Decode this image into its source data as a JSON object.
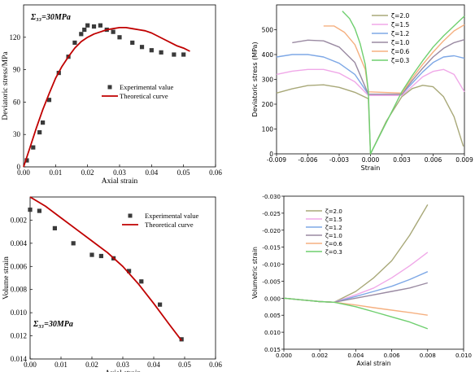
{
  "chart_data": [
    {
      "type": "scatter",
      "panel": "top-left",
      "xlabel": "Axial strain",
      "ylabel": "Deviatoric stress/MPa",
      "annotation": "Σ₃₃=30MPa",
      "xlim": [
        0,
        0.06
      ],
      "ylim": [
        0,
        150
      ],
      "xticks": [
        "0.00",
        "0.01",
        "0.02",
        "0.03",
        "0.04",
        "0.05",
        "0.06"
      ],
      "yticks": [
        "0",
        "30",
        "60",
        "90",
        "120"
      ],
      "ytick_values": [
        0,
        30,
        60,
        90,
        120
      ],
      "legend_position": "center-right",
      "series": [
        {
          "name": "Experimental value",
          "kind": "points",
          "color": "#3a3a3a",
          "x": [
            0.001,
            0.003,
            0.005,
            0.006,
            0.008,
            0.011,
            0.014,
            0.016,
            0.018,
            0.019,
            0.02,
            0.022,
            0.024,
            0.026,
            0.028,
            0.03,
            0.034,
            0.037,
            0.04,
            0.043,
            0.047,
            0.05
          ],
          "y": [
            6,
            18,
            32,
            41,
            62,
            87,
            102,
            115,
            123,
            127,
            131,
            130,
            131,
            127,
            125,
            120,
            115,
            111,
            108,
            106,
            104,
            104
          ]
        },
        {
          "name": "Theoretical curve",
          "kind": "line",
          "color": "#c00000",
          "x": [
            0.0,
            0.002,
            0.004,
            0.006,
            0.008,
            0.01,
            0.012,
            0.014,
            0.016,
            0.018,
            0.02,
            0.022,
            0.024,
            0.026,
            0.028,
            0.03,
            0.032,
            0.034,
            0.036,
            0.038,
            0.04,
            0.042,
            0.044,
            0.046,
            0.048,
            0.05,
            0.052
          ],
          "y": [
            0,
            18,
            36,
            53,
            68,
            82,
            93,
            102,
            110,
            116,
            120,
            123,
            125,
            127,
            128,
            129,
            129,
            128,
            127,
            126,
            124,
            121,
            118,
            115,
            112,
            110,
            107
          ]
        }
      ]
    },
    {
      "type": "line",
      "panel": "top-right",
      "xlabel": "Strain",
      "ylabel": "Deviatoric stress (MPa)",
      "xlim": [
        -0.009,
        0.009
      ],
      "ylim": [
        0,
        600
      ],
      "xticks": [
        "-0.009",
        "-0.006",
        "-0.003",
        "0.000",
        "0.003",
        "0.006",
        "0.009"
      ],
      "xtick_values": [
        -0.009,
        -0.006,
        -0.003,
        0,
        0.003,
        0.006,
        0.009
      ],
      "yticks": [
        "0",
        "100",
        "200",
        "300",
        "400",
        "500"
      ],
      "ytick_values": [
        0,
        100,
        200,
        300,
        400,
        500
      ],
      "legend_position": "top-right",
      "series": [
        {
          "name": "ζ=2.0",
          "color": "#a8a878",
          "x": [
            -0.009,
            -0.0075,
            -0.006,
            -0.0045,
            -0.003,
            -0.0015,
            -0.0002,
            0.0,
            0.0015,
            0.003,
            0.004,
            0.005,
            0.006,
            0.007,
            0.008,
            0.0089
          ],
          "y": [
            245,
            262,
            275,
            278,
            268,
            248,
            222,
            0,
            130,
            230,
            263,
            276,
            270,
            230,
            150,
            30
          ]
        },
        {
          "name": "ζ=1.5",
          "color": "#f0a8e8",
          "x": [
            -0.009,
            -0.0075,
            -0.006,
            -0.0045,
            -0.003,
            -0.0015,
            -0.0002,
            0.003,
            0.004,
            0.005,
            0.006,
            0.007,
            0.008,
            0.009
          ],
          "y": [
            320,
            333,
            340,
            340,
            325,
            290,
            235,
            235,
            272,
            310,
            332,
            340,
            320,
            250
          ]
        },
        {
          "name": "ζ=1.2",
          "color": "#7ea8e6",
          "x": [
            -0.009,
            -0.0075,
            -0.006,
            -0.0045,
            -0.003,
            -0.0015,
            -0.0002,
            0.003,
            0.004,
            0.005,
            0.006,
            0.007,
            0.008,
            0.009
          ],
          "y": [
            390,
            400,
            400,
            390,
            365,
            320,
            240,
            240,
            285,
            330,
            368,
            390,
            395,
            385
          ]
        },
        {
          "name": "ζ=1.0",
          "color": "#9a8aa2",
          "x": [
            -0.0075,
            -0.006,
            -0.0045,
            -0.003,
            -0.0015,
            -0.0002,
            0.003,
            0.004,
            0.005,
            0.006,
            0.007,
            0.008,
            0.009
          ],
          "y": [
            448,
            458,
            455,
            430,
            368,
            240,
            240,
            295,
            345,
            390,
            425,
            448,
            460
          ]
        },
        {
          "name": "ζ=0.6",
          "color": "#f5b080",
          "x": [
            -0.0045,
            -0.0035,
            -0.0025,
            -0.0015,
            -0.0005,
            -0.0002,
            0.003,
            0.004,
            0.005,
            0.006,
            0.007,
            0.008,
            0.009
          ],
          "y": [
            515,
            515,
            490,
            440,
            340,
            250,
            245,
            305,
            360,
            410,
            455,
            495,
            520
          ]
        },
        {
          "name": "ζ=0.3",
          "color": "#6fcf6f",
          "x": [
            -0.0027,
            -0.002,
            -0.0015,
            -0.001,
            -0.0005,
            -0.0002,
            0.0,
            0.003,
            0.004,
            0.005,
            0.006,
            0.007,
            0.008,
            0.009
          ],
          "y": [
            575,
            545,
            505,
            445,
            360,
            250,
            0,
            250,
            315,
            375,
            430,
            475,
            515,
            555
          ]
        }
      ]
    },
    {
      "type": "scatter",
      "panel": "bottom-left",
      "xlabel": "Axial strain",
      "ylabel": "Volume strain",
      "annotation": "Σ₃₃=30MPa",
      "xlim": [
        0,
        0.06
      ],
      "ylim": [
        0.0,
        0.014
      ],
      "y_inverted": true,
      "xticks": [
        "0.00",
        "0.01",
        "0.02",
        "0.03",
        "0.04",
        "0.05",
        "0.06"
      ],
      "yticks": [
        "0.002",
        "0.004",
        "0.006",
        "0.008",
        "0.010",
        "0.012",
        "0.014"
      ],
      "ytick_values": [
        0.002,
        0.004,
        0.006,
        0.008,
        0.01,
        0.012,
        0.014
      ],
      "legend_position": "top-right",
      "series": [
        {
          "name": "Experimental value",
          "kind": "points",
          "color": "#3a3a3a",
          "x": [
            0.0,
            0.003,
            0.008,
            0.014,
            0.02,
            0.023,
            0.027,
            0.032,
            0.036,
            0.042,
            0.049
          ],
          "y": [
            0.0011,
            0.0012,
            0.0027,
            0.004,
            0.005,
            0.0051,
            0.0053,
            0.0064,
            0.0073,
            0.0093,
            0.0123
          ]
        },
        {
          "name": "Theoretical curve",
          "kind": "line",
          "color": "#c00000",
          "x": [
            0.0,
            0.005,
            0.01,
            0.015,
            0.02,
            0.025,
            0.03,
            0.035,
            0.04,
            0.045,
            0.049
          ],
          "y": [
            0.0,
            0.0008,
            0.0018,
            0.0028,
            0.0038,
            0.0048,
            0.006,
            0.0075,
            0.0092,
            0.011,
            0.0124
          ]
        }
      ]
    },
    {
      "type": "line",
      "panel": "bottom-right",
      "xlabel": "Axial strain",
      "ylabel": "Volumetric strain",
      "xlim": [
        0,
        0.01
      ],
      "ylim": [
        -0.03,
        0.015
      ],
      "y_inverted": true,
      "xticks": [
        "0.000",
        "0.002",
        "0.004",
        "0.006",
        "0.008",
        "0.010"
      ],
      "xtick_values": [
        0,
        0.002,
        0.004,
        0.006,
        0.008,
        0.01
      ],
      "yticks": [
        "-0.030",
        "-0.025",
        "-0.020",
        "-0.015",
        "-0.010",
        "-0.005",
        "0.000",
        "0.005",
        "0.010",
        "0.015"
      ],
      "ytick_values": [
        -0.03,
        -0.025,
        -0.02,
        -0.015,
        -0.01,
        -0.005,
        0.0,
        0.005,
        0.01,
        0.015
      ],
      "legend_position": "top-left",
      "series": [
        {
          "name": "ζ=2.0",
          "color": "#a8a878",
          "x": [
            0.0,
            0.001,
            0.002,
            0.0028,
            0.004,
            0.005,
            0.006,
            0.007,
            0.008
          ],
          "y": [
            0.0,
            0.0005,
            0.001,
            0.0012,
            -0.002,
            -0.006,
            -0.011,
            -0.0185,
            -0.0275
          ]
        },
        {
          "name": "ζ=1.5",
          "color": "#f0a8e8",
          "x": [
            0.0,
            0.001,
            0.002,
            0.0028,
            0.004,
            0.005,
            0.006,
            0.007,
            0.008
          ],
          "y": [
            0.0,
            0.0005,
            0.001,
            0.0012,
            -0.001,
            -0.003,
            -0.006,
            -0.0095,
            -0.0135
          ]
        },
        {
          "name": "ζ=1.2",
          "color": "#7ea8e6",
          "x": [
            0.0,
            0.001,
            0.002,
            0.0028,
            0.004,
            0.005,
            0.006,
            0.007,
            0.008
          ],
          "y": [
            0.0,
            0.0005,
            0.001,
            0.0012,
            -0.0005,
            -0.002,
            -0.0035,
            -0.0055,
            -0.0078
          ]
        },
        {
          "name": "ζ=1.0",
          "color": "#9a8aa2",
          "x": [
            0.0,
            0.001,
            0.002,
            0.0028,
            0.004,
            0.005,
            0.006,
            0.007,
            0.008
          ],
          "y": [
            0.0,
            0.0005,
            0.001,
            0.0012,
            0.0,
            -0.001,
            -0.002,
            -0.003,
            -0.0045
          ]
        },
        {
          "name": "ζ=0.6",
          "color": "#f5b080",
          "x": [
            0.0,
            0.001,
            0.002,
            0.0028,
            0.004,
            0.005,
            0.006,
            0.007,
            0.008
          ],
          "y": [
            0.0,
            0.0005,
            0.001,
            0.0012,
            0.002,
            0.0028,
            0.0035,
            0.0042,
            0.005
          ]
        },
        {
          "name": "ζ=0.3",
          "color": "#6fcf6f",
          "x": [
            0.0,
            0.001,
            0.002,
            0.0028,
            0.004,
            0.005,
            0.006,
            0.007,
            0.008
          ],
          "y": [
            0.0,
            0.0005,
            0.001,
            0.0012,
            0.0025,
            0.004,
            0.0055,
            0.007,
            0.009
          ]
        }
      ]
    }
  ]
}
